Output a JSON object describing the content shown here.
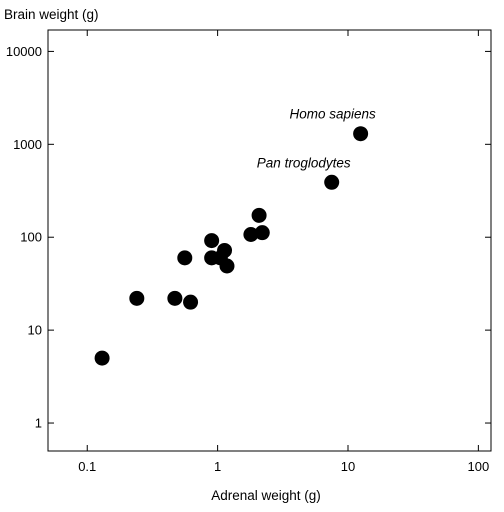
{
  "chart_data": {
    "type": "scatter",
    "title": "",
    "xlabel": "Adrenal weight (g)",
    "ylabel": "Brain weight (g)",
    "x_scale": "log",
    "y_scale": "log",
    "xlim": [
      0.05,
      125
    ],
    "ylim": [
      0.5,
      17000
    ],
    "x_ticks": [
      0.1,
      1,
      10,
      100
    ],
    "x_tick_labels": [
      "0.1",
      "1",
      "10",
      "100"
    ],
    "y_ticks": [
      1,
      10,
      100,
      1000,
      10000
    ],
    "y_tick_labels": [
      "1",
      "10",
      "100",
      "1000",
      "10000"
    ],
    "grid": false,
    "legend": "none",
    "marker_color": "#000000",
    "points": [
      {
        "x": 0.13,
        "y": 5
      },
      {
        "x": 0.24,
        "y": 22
      },
      {
        "x": 0.47,
        "y": 22
      },
      {
        "x": 0.62,
        "y": 20
      },
      {
        "x": 0.56,
        "y": 60
      },
      {
        "x": 0.9,
        "y": 92
      },
      {
        "x": 0.9,
        "y": 60
      },
      {
        "x": 1.05,
        "y": 60
      },
      {
        "x": 1.13,
        "y": 72
      },
      {
        "x": 1.18,
        "y": 49
      },
      {
        "x": 1.8,
        "y": 107
      },
      {
        "x": 2.08,
        "y": 172
      },
      {
        "x": 2.2,
        "y": 112
      },
      {
        "x": 7.5,
        "y": 390,
        "label": "Pan troglodytes"
      },
      {
        "x": 12.5,
        "y": 1300,
        "label": "Homo sapiens"
      }
    ],
    "annotations": [
      "Homo sapiens",
      "Pan troglodytes"
    ]
  }
}
